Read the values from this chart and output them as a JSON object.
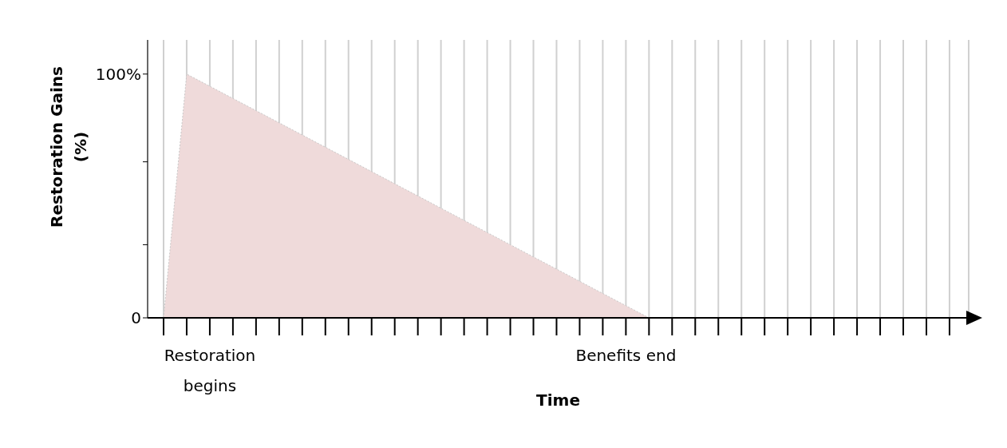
{
  "chart_data": {
    "type": "area",
    "xlabel": "Time",
    "ylabel": "Restoration Gains (%)",
    "categories": [
      null,
      null,
      "Restoration begins",
      null,
      null,
      null,
      null,
      null,
      null,
      null,
      null,
      null,
      null,
      null,
      null,
      null,
      null,
      null,
      null,
      null,
      "Benefits end",
      null,
      null,
      null,
      null,
      null,
      null,
      null,
      null,
      null,
      null,
      null,
      null,
      null,
      null
    ],
    "values": [
      0,
      100,
      95,
      90,
      85,
      80,
      75,
      70,
      65,
      60,
      55,
      50,
      45,
      40,
      35,
      30,
      25,
      20,
      15,
      10,
      5,
      0,
      null,
      null,
      null,
      null,
      null,
      null,
      null,
      null,
      null,
      null,
      null,
      null,
      null
    ],
    "color": "#efdada",
    "ylim": [
      0,
      114
    ],
    "yticks": [
      {
        "value": 0,
        "label": "0"
      },
      {
        "value": 30,
        "label": null
      },
      {
        "value": 64,
        "label": null
      },
      {
        "value": 100,
        "label": "100%"
      }
    ],
    "grid": "x"
  }
}
